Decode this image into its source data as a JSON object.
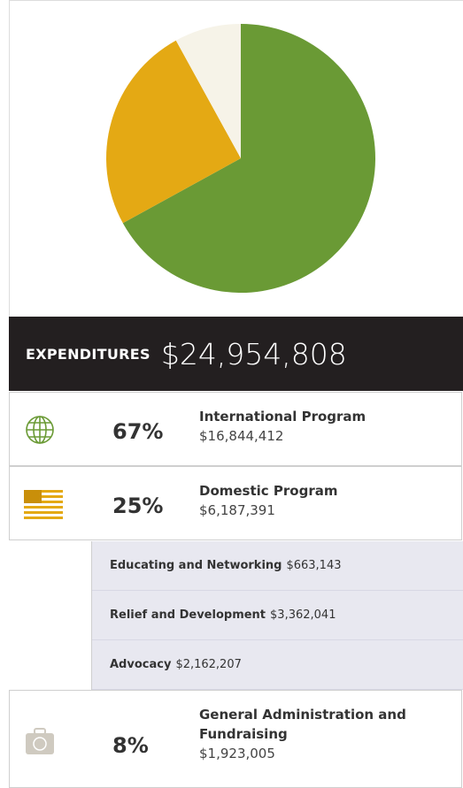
{
  "chart_data": {
    "type": "pie",
    "categories": [
      "International Program",
      "Domestic Program",
      "General Administration and Fundraising"
    ],
    "values": [
      67,
      25,
      8
    ],
    "value_labels": [
      "67%",
      "25%",
      "8%"
    ],
    "colors": [
      "#6a9a35",
      "#e4a914",
      "#f6f3e8"
    ]
  },
  "summary": {
    "label": "EXPENDITURES",
    "total": "$24,954,808"
  },
  "amounts": [
    "$16,844,412",
    "$6,187,391",
    "$1,923,005"
  ],
  "sub_items": [
    {
      "name": "Educating and Networking",
      "amount": "$663,143"
    },
    {
      "name": "Relief and Development",
      "amount": "$3,362,041"
    },
    {
      "name": "Advocacy",
      "amount": "$2,162,207"
    }
  ]
}
